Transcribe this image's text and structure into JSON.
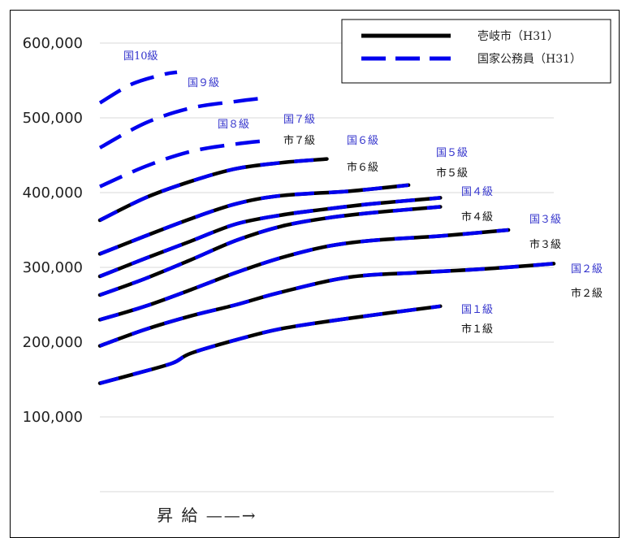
{
  "chart_data": {
    "type": "line",
    "title": "",
    "xlabel": "昇 給 ——→",
    "ylabel": "",
    "ylim": [
      0,
      620000
    ],
    "xlim": [
      0,
      100
    ],
    "y_ticks": [
      {
        "value": 100000,
        "label": "100,000"
      },
      {
        "value": 200000,
        "label": "200,000"
      },
      {
        "value": 300000,
        "label": "300,000"
      },
      {
        "value": 400000,
        "label": "400,000"
      },
      {
        "value": 500000,
        "label": "500,000"
      },
      {
        "value": 600000,
        "label": "600,000"
      }
    ],
    "grid": true,
    "legend": {
      "placement": "top-right",
      "entries": [
        {
          "name": "壱岐市（H31）",
          "color": "#000000",
          "style": "solid"
        },
        {
          "name": "国家公務員（H31）",
          "color": "#0000ee",
          "style": "dashed"
        }
      ]
    },
    "series": [
      {
        "grade": 1,
        "kuni_label": "国１級",
        "shi_label": "市１級",
        "x": [
          0,
          8,
          16,
          20,
          30,
          40,
          55,
          75
        ],
        "kuni": [
          145000,
          158000,
          172000,
          185000,
          203000,
          218000,
          232000,
          248000
        ],
        "shi": [
          145000,
          158000,
          172000,
          185000,
          203000,
          218000,
          232000,
          248000
        ]
      },
      {
        "grade": 2,
        "kuni_label": "国２級",
        "shi_label": "市２級",
        "x": [
          0,
          10,
          20,
          30,
          40,
          55,
          70,
          85,
          100
        ],
        "kuni": [
          195000,
          217000,
          235000,
          250000,
          267000,
          287000,
          293000,
          298000,
          305000
        ],
        "shi": [
          195000,
          217000,
          235000,
          250000,
          267000,
          287000,
          293000,
          298000,
          305000
        ]
      },
      {
        "grade": 3,
        "kuni_label": "国３級",
        "shi_label": "市３級",
        "x": [
          0,
          10,
          20,
          30,
          40,
          50,
          60,
          75,
          90
        ],
        "kuni": [
          230000,
          248000,
          270000,
          293000,
          313000,
          328000,
          336000,
          342000,
          350000
        ],
        "shi": [
          230000,
          248000,
          270000,
          293000,
          313000,
          328000,
          336000,
          342000,
          350000
        ]
      },
      {
        "grade": 4,
        "kuni_label": "国４級",
        "shi_label": "市４級",
        "x": [
          0,
          10,
          20,
          30,
          40,
          50,
          60,
          75
        ],
        "kuni": [
          263000,
          285000,
          310000,
          336000,
          355000,
          366000,
          373000,
          381000
        ],
        "shi": [
          263000,
          285000,
          310000,
          336000,
          355000,
          366000,
          373000,
          381000
        ]
      },
      {
        "grade": 5,
        "kuni_label": "国５級",
        "shi_label": "市５級",
        "x": [
          0,
          10,
          20,
          30,
          40,
          50,
          60,
          75
        ],
        "kuni": [
          288000,
          312000,
          335000,
          358000,
          370000,
          378000,
          385000,
          393000
        ],
        "shi": [
          288000,
          312000,
          335000,
          358000,
          370000,
          378000,
          385000,
          393000
        ]
      },
      {
        "grade": 6,
        "kuni_label": "国６級",
        "shi_label": "市６級",
        "x": [
          0,
          10,
          20,
          30,
          40,
          55,
          68
        ],
        "kuni": [
          318000,
          342000,
          365000,
          385000,
          396000,
          402000,
          410000
        ],
        "shi": [
          318000,
          342000,
          365000,
          385000,
          396000,
          402000,
          410000
        ]
      },
      {
        "grade": 7,
        "kuni_label": "国７級",
        "shi_label": "市７級",
        "x": [
          0,
          10,
          20,
          30,
          40,
          50
        ],
        "kuni": [
          363000,
          393000,
          415000,
          432000,
          440000,
          445000
        ],
        "shi": [
          363000,
          393000,
          415000,
          432000,
          440000,
          445000
        ]
      },
      {
        "grade": 8,
        "kuni_label": "国８級",
        "shi_label": null,
        "x": [
          0,
          10,
          20,
          30,
          36
        ],
        "kuni": [
          408000,
          435000,
          455000,
          465000,
          469000
        ],
        "shi": null
      },
      {
        "grade": 9,
        "kuni_label": "国９級",
        "shi_label": null,
        "x": [
          0,
          10,
          20,
          30,
          37
        ],
        "kuni": [
          460000,
          493000,
          513000,
          522000,
          527000
        ],
        "shi": null
      },
      {
        "grade": 10,
        "kuni_label": "国10級",
        "shi_label": null,
        "x": [
          0,
          7,
          14,
          17
        ],
        "kuni": [
          520000,
          545000,
          558000,
          561000
        ],
        "shi": null
      }
    ]
  }
}
